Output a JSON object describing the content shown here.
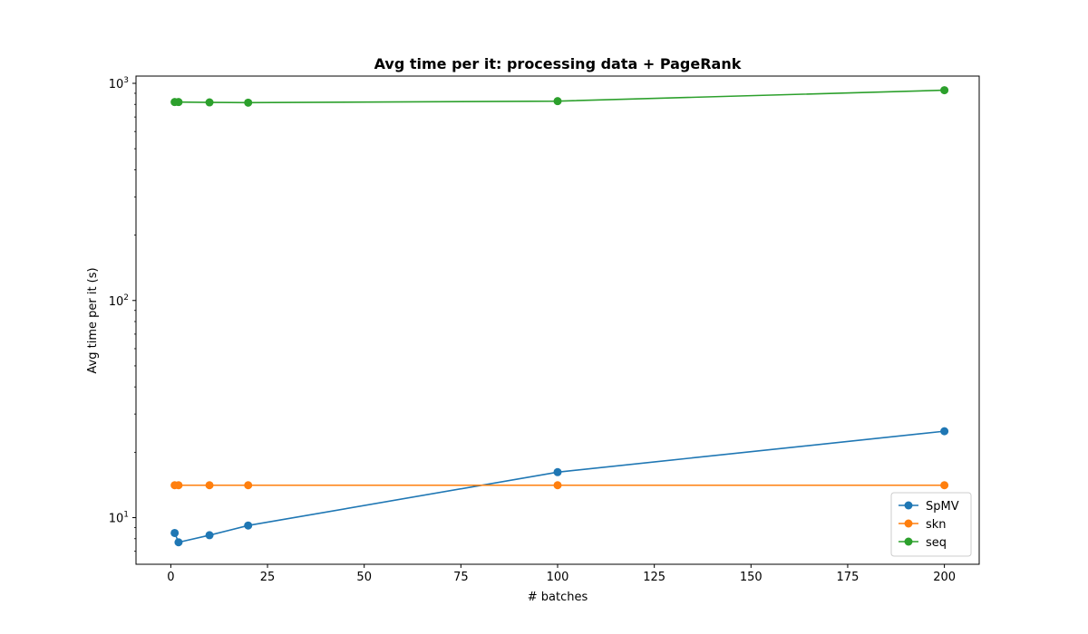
{
  "chart_data": {
    "type": "line",
    "title": "Avg time per it: processing data + PageRank",
    "xlabel": "# batches",
    "ylabel": "Avg time per it (s)",
    "yscale": "log",
    "xlim": [
      -9,
      209
    ],
    "ylim": [
      6.1,
      1080
    ],
    "xticks": [
      0,
      25,
      50,
      75,
      100,
      125,
      150,
      175,
      200
    ],
    "yticks": [
      {
        "value": 10,
        "base": "10",
        "exp": "1"
      },
      {
        "value": 100,
        "base": "10",
        "exp": "2"
      },
      {
        "value": 1000,
        "base": "10",
        "exp": "3"
      }
    ],
    "grid": false,
    "legend_position": "lower-right",
    "x": [
      1,
      2,
      10,
      20,
      100,
      200
    ],
    "series": [
      {
        "name": "SpMV",
        "color": "#1f77b4",
        "values": [
          8.5,
          7.7,
          8.3,
          9.2,
          16.2,
          25.0
        ]
      },
      {
        "name": "skn",
        "color": "#ff7f0e",
        "values": [
          14.1,
          14.1,
          14.1,
          14.1,
          14.1,
          14.1
        ]
      },
      {
        "name": "seq",
        "color": "#2ca02c",
        "values": [
          820,
          820,
          817,
          815,
          828,
          930
        ]
      }
    ]
  }
}
